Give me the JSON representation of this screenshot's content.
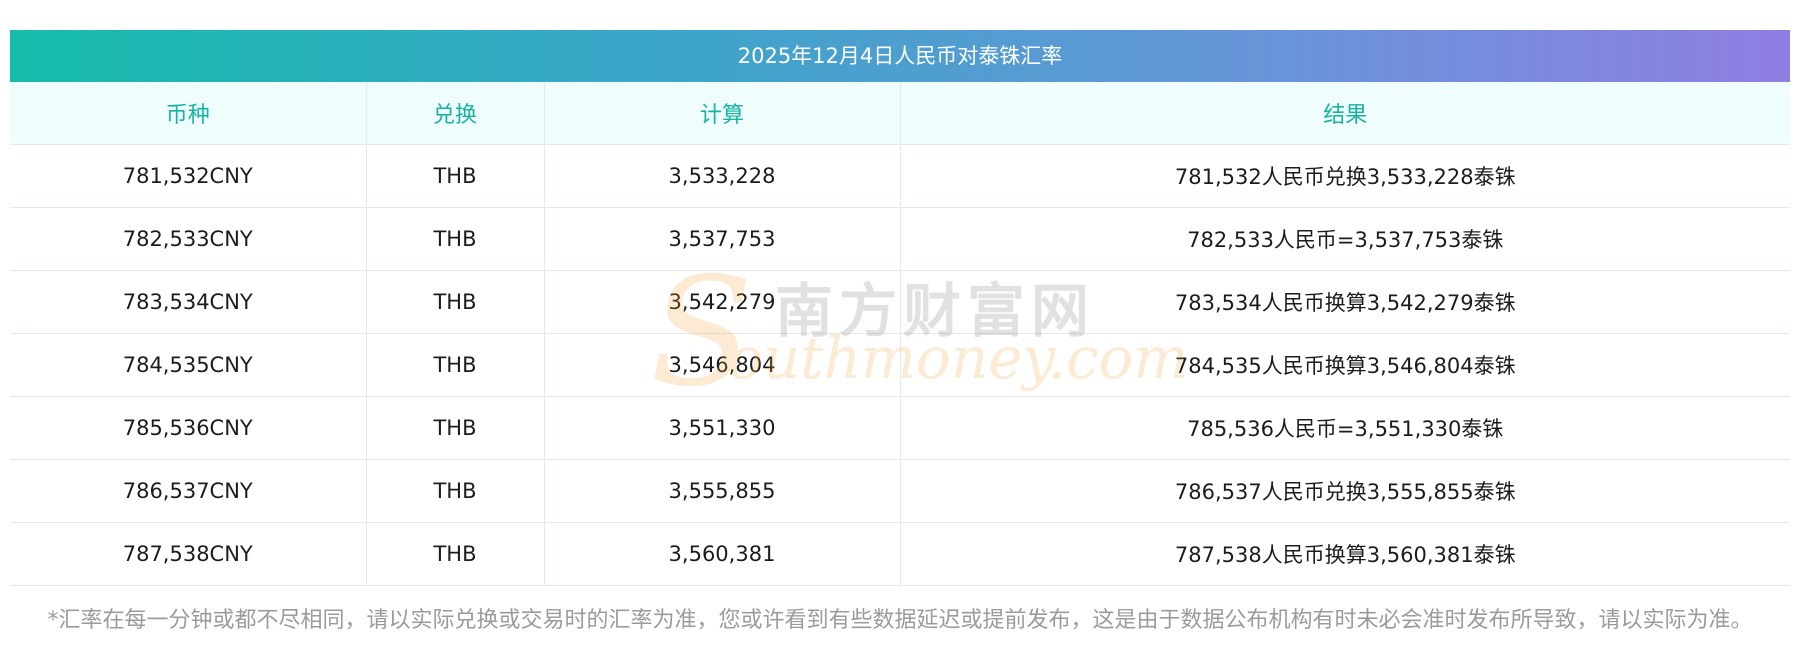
{
  "title": "2025年12月4日人民币对泰铢汇率",
  "headers": [
    "币种",
    "兑换",
    "计算",
    "结果"
  ],
  "rows": [
    [
      "781,532CNY",
      "THB",
      "3,533,228",
      "781,532人民币兑换3,533,228泰铢"
    ],
    [
      "782,533CNY",
      "THB",
      "3,537,753",
      "782,533人民币=3,537,753泰铢"
    ],
    [
      "783,534CNY",
      "THB",
      "3,542,279",
      "783,534人民币换算3,542,279泰铢"
    ],
    [
      "784,535CNY",
      "THB",
      "3,546,804",
      "784,535人民币换算3,546,804泰铢"
    ],
    [
      "785,536CNY",
      "THB",
      "3,551,330",
      "785,536人民币=3,551,330泰铢"
    ],
    [
      "786,537CNY",
      "THB",
      "3,555,855",
      "786,537人民币兑换3,555,855泰铢"
    ],
    [
      "787,538CNY",
      "THB",
      "3,560,381",
      "787,538人民币换算3,560,381泰铢"
    ]
  ],
  "note": "*汇率在每一分钟或都不尽相同，请以实际兑换或交易时的汇率为准，您或许看到有些数据延迟或提前发布，这是由于数据公布机构有时未必会准时发布所导致，请以实际为准。",
  "watermark": {
    "initial": "S",
    "cn": "南方财富网",
    "en": "outhmoney.com"
  },
  "colors": {
    "gradient_start": "#16bcab",
    "gradient_end": "#8f7ee2",
    "header_text": "#17b3a6",
    "header_bg": "#effdfd",
    "note_text": "#9b9b9b"
  }
}
